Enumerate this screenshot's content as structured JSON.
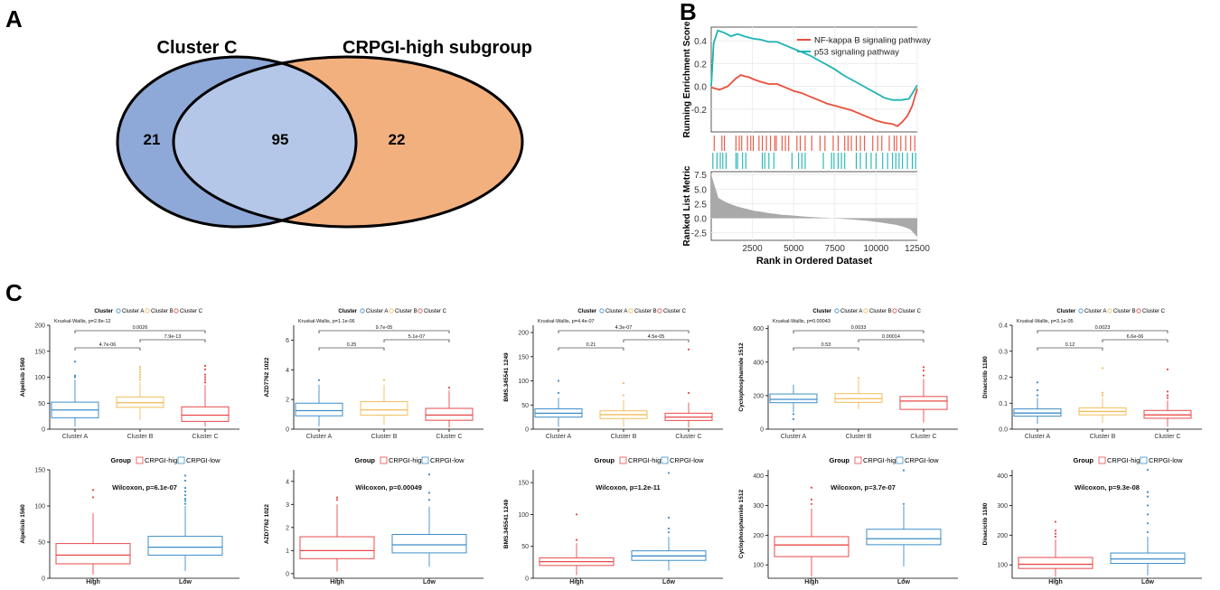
{
  "panels": {
    "A": "A",
    "B": "B",
    "C": "C"
  },
  "colors": {
    "clusterA": "#3d8ec9",
    "clusterB": "#f2bd5c",
    "clusterC": "#e84a4a",
    "high": "#e84a4a",
    "low": "#3d8ec9",
    "nfkb": "#e8503c",
    "p53": "#1fb3b3",
    "venn_left": "#8ea8d8",
    "venn_mid": "#b5c7e8",
    "venn_right": "#f3b07f"
  },
  "chart_data": [
    {
      "type": "venn",
      "id": "venn",
      "sets": [
        "Cluster C",
        "CRPGI-high subgroup"
      ],
      "values": {
        "left_only": 21,
        "intersection": 95,
        "right_only": 22
      }
    },
    {
      "type": "line",
      "id": "gsea",
      "ylabel": "Running Enrichment Score",
      "xlabel": "Rank in Ordered Dataset",
      "ylabel2": "Ranked List Metric",
      "ylim": [
        -0.4,
        0.52
      ],
      "yticks": [
        "0.4",
        "0.2",
        "0.0",
        "-0.2"
      ],
      "ytick_values": [
        0.4,
        0.2,
        0.0,
        -0.2
      ],
      "xlim": [
        0,
        12500
      ],
      "xticks": [
        "2500",
        "5000",
        "7500",
        "10000",
        "12500"
      ],
      "xtick_values": [
        2500,
        5000,
        7500,
        10000,
        12500
      ],
      "metric_ylim": [
        -3.8,
        8
      ],
      "metric_yticks": [
        "7.5",
        "5.0",
        "2.5",
        "0.0",
        "-2.5"
      ],
      "metric_ytick_values": [
        7.5,
        5.0,
        2.5,
        0.0,
        -2.5
      ],
      "series": [
        {
          "name": "NF-kappa B signaling pathway",
          "x": [
            0,
            500,
            1000,
            1500,
            1800,
            2000,
            2300,
            2600,
            3000,
            3500,
            4000,
            4500,
            5000,
            5500,
            6000,
            6500,
            7000,
            7500,
            8000,
            8500,
            9000,
            9500,
            10000,
            10500,
            11000,
            11300,
            11600,
            11900,
            12200,
            12500
          ],
          "y": [
            -0.01,
            -0.03,
            0.0,
            0.07,
            0.1,
            0.09,
            0.08,
            0.06,
            0.04,
            0.02,
            0.02,
            -0.01,
            -0.04,
            -0.06,
            -0.09,
            -0.12,
            -0.15,
            -0.17,
            -0.19,
            -0.21,
            -0.24,
            -0.27,
            -0.3,
            -0.32,
            -0.33,
            -0.35,
            -0.31,
            -0.26,
            -0.17,
            -0.02
          ]
        },
        {
          "name": "p53 signaling pathway",
          "x": [
            0,
            150,
            400,
            800,
            1200,
            1600,
            2000,
            2500,
            3000,
            3500,
            4000,
            4500,
            5000,
            5500,
            6000,
            6500,
            7000,
            7500,
            8000,
            8500,
            9000,
            9500,
            10000,
            10500,
            11000,
            11500,
            12000,
            12500
          ],
          "y": [
            0.0,
            0.38,
            0.49,
            0.47,
            0.44,
            0.46,
            0.44,
            0.42,
            0.41,
            0.39,
            0.39,
            0.36,
            0.33,
            0.3,
            0.27,
            0.23,
            0.19,
            0.15,
            0.1,
            0.06,
            0.02,
            -0.02,
            -0.06,
            -0.1,
            -0.12,
            -0.12,
            -0.11,
            0.01
          ]
        }
      ],
      "hits_nfkb": [
        180,
        650,
        800,
        1500,
        1700,
        1850,
        2200,
        2400,
        2550,
        2900,
        3100,
        3350,
        3600,
        3850,
        3950,
        4300,
        4500,
        4700,
        5200,
        5400,
        5700,
        6100,
        6600,
        6900,
        7400,
        7700,
        8100,
        8300,
        8500,
        8800,
        9050,
        9300,
        9800,
        10100,
        10350,
        10800,
        11100,
        11250,
        11500,
        11800,
        12100,
        12350
      ],
      "hits_p53": [
        100,
        350,
        550,
        700,
        900,
        1500,
        1600,
        1900,
        2100,
        3100,
        3250,
        3500,
        3800,
        4900,
        5300,
        5500,
        5700,
        6800,
        7300,
        7450,
        7700,
        7900,
        8100,
        8800,
        9050,
        9400,
        9700,
        10000,
        10400,
        10700,
        11000,
        11200,
        11400,
        11600,
        11900,
        12200,
        12400
      ],
      "metric": [
        7.5,
        3.5,
        2.8,
        2.3,
        1.9,
        1.6,
        1.3,
        1.1,
        0.9,
        0.75,
        0.6,
        0.5,
        0.4,
        0.3,
        0.22,
        0.15,
        0.08,
        0.0,
        -0.08,
        -0.15,
        -0.25,
        -0.35,
        -0.45,
        -0.6,
        -0.75,
        -0.95,
        -1.15,
        -1.45,
        -1.9,
        -3.2
      ]
    }
  ],
  "boxplots": [
    {
      "drug": "Alpelisib 1560",
      "top": {
        "legend_title": "Cluster",
        "legend_items": [
          "Cluster A",
          "Cluster B",
          "Cluster C"
        ],
        "test": "Kruskal-Wallis, p=2.8e-12",
        "ylim": [
          0,
          200
        ],
        "yticks": [
          "200",
          "150",
          "100",
          "50",
          "0"
        ],
        "ytick_values": [
          200,
          150,
          100,
          50,
          0
        ],
        "groups": [
          {
            "name": "Cluster A",
            "min": 5,
            "q1": 22,
            "median": 37,
            "q3": 52,
            "max": 95,
            "outliers": [
              100,
              103,
              130
            ]
          },
          {
            "name": "Cluster B",
            "min": 18,
            "q1": 42,
            "median": 51,
            "q3": 62,
            "max": 90,
            "outliers": [
              95,
              100,
              105,
              110,
              115,
              120
            ]
          },
          {
            "name": "Cluster C",
            "min": 5,
            "q1": 15,
            "median": 27,
            "q3": 43,
            "max": 85,
            "outliers": [
              90,
              95,
              100,
              105,
              115,
              122
            ]
          }
        ],
        "brackets": [
          {
            "from": 0,
            "to": 1,
            "label": "4.7e-06",
            "level": 0
          },
          {
            "from": 1,
            "to": 2,
            "label": "7.9e-13",
            "level": 1
          },
          {
            "from": 0,
            "to": 2,
            "label": "0.0026",
            "level": 2
          }
        ]
      },
      "bottom": {
        "legend_title": "Group",
        "legend_items": [
          "CRPGI-high",
          "CRPGI-low"
        ],
        "test": "Wilcoxon, p=6.1e-07",
        "ylim": [
          0,
          150
        ],
        "yticks": [
          "150",
          "100",
          "50",
          "0"
        ],
        "ytick_values": [
          150,
          100,
          50,
          0
        ],
        "groups": [
          {
            "name": "High",
            "min": 5,
            "q1": 20,
            "median": 32,
            "q3": 48,
            "max": 90,
            "outliers": [
              112,
              122
            ]
          },
          {
            "name": "Low",
            "min": 10,
            "q1": 32,
            "median": 43,
            "q3": 58,
            "max": 100,
            "outliers": [
              103,
              107,
              110,
              115,
              120,
              125,
              135,
              142
            ]
          }
        ]
      }
    },
    {
      "drug": "AZD7762 1022",
      "top": {
        "legend_title": "Cluster",
        "legend_items": [
          "Cluster A",
          "Cluster B",
          "Cluster C"
        ],
        "test": "Kruskal-Wallis, p=1.1e-06",
        "ylim": [
          0,
          7
        ],
        "yticks": [
          "6",
          "4",
          "2",
          "0"
        ],
        "ytick_values": [
          6,
          4,
          2,
          0
        ],
        "groups": [
          {
            "name": "Cluster A",
            "min": 0.2,
            "q1": 0.9,
            "median": 1.25,
            "q3": 1.75,
            "max": 3.0,
            "outliers": [
              3.3
            ]
          },
          {
            "name": "Cluster B",
            "min": 0.3,
            "q1": 0.95,
            "median": 1.3,
            "q3": 1.85,
            "max": 3.0,
            "outliers": [
              3.3
            ]
          },
          {
            "name": "Cluster C",
            "min": 0.1,
            "q1": 0.6,
            "median": 0.95,
            "q3": 1.4,
            "max": 2.6,
            "outliers": [
              2.8
            ]
          }
        ],
        "brackets": [
          {
            "from": 0,
            "to": 1,
            "label": "0.25",
            "level": 0
          },
          {
            "from": 1,
            "to": 2,
            "label": "5.1e-07",
            "level": 1
          },
          {
            "from": 0,
            "to": 2,
            "label": "9.7e-05",
            "level": 2
          }
        ]
      },
      "bottom": {
        "legend_title": "Group",
        "legend_items": [
          "CRPGI-high",
          "CRPGI-low"
        ],
        "test": "Wilcoxon, p=0.00049",
        "ylim": [
          -0.2,
          4.5
        ],
        "yticks": [
          "4",
          "3",
          "2",
          "1",
          "0"
        ],
        "ytick_values": [
          4,
          3,
          2,
          1,
          0
        ],
        "groups": [
          {
            "name": "High",
            "min": 0.1,
            "q1": 0.65,
            "median": 1.0,
            "q3": 1.6,
            "max": 3.0,
            "outliers": [
              3.2,
              3.3
            ]
          },
          {
            "name": "Low",
            "min": 0.3,
            "q1": 0.9,
            "median": 1.25,
            "q3": 1.7,
            "max": 2.9,
            "outliers": [
              3.2,
              3.5,
              4.3
            ]
          }
        ]
      }
    },
    {
      "drug": "BMS.345541 1249",
      "top": {
        "legend_title": "Cluster",
        "legend_items": [
          "Cluster A",
          "Cluster B",
          "Cluster C"
        ],
        "test": "Kruskal-Wallis, p=4.4e-07",
        "ylim": [
          0,
          215
        ],
        "yticks": [
          "200",
          "150",
          "100",
          "50",
          "0"
        ],
        "ytick_values": [
          200,
          150,
          100,
          50,
          0
        ],
        "groups": [
          {
            "name": "Cluster A",
            "min": 5,
            "q1": 25,
            "median": 33,
            "q3": 42,
            "max": 65,
            "outliers": [
              75,
              100
            ]
          },
          {
            "name": "Cluster B",
            "min": 5,
            "q1": 22,
            "median": 30,
            "q3": 38,
            "max": 60,
            "outliers": [
              70,
              95
            ]
          },
          {
            "name": "Cluster C",
            "min": 3,
            "q1": 18,
            "median": 25,
            "q3": 33,
            "max": 55,
            "outliers": [
              75,
              165
            ]
          }
        ],
        "brackets": [
          {
            "from": 0,
            "to": 1,
            "label": "0.21",
            "level": 0
          },
          {
            "from": 1,
            "to": 2,
            "label": "4.5e-05",
            "level": 1
          },
          {
            "from": 0,
            "to": 2,
            "label": "4.3e-07",
            "level": 2
          }
        ]
      },
      "bottom": {
        "legend_title": "Group",
        "legend_items": [
          "CRPGI-high",
          "CRPGI-low"
        ],
        "test": "Wilcoxon, p=1.2e-11",
        "ylim": [
          0,
          170
        ],
        "yticks": [
          "150",
          "100",
          "50",
          "0"
        ],
        "ytick_values": [
          150,
          100,
          50,
          0
        ],
        "groups": [
          {
            "name": "High",
            "min": 5,
            "q1": 20,
            "median": 26,
            "q3": 32,
            "max": 55,
            "outliers": [
              60,
              100
            ]
          },
          {
            "name": "Low",
            "min": 12,
            "q1": 28,
            "median": 35,
            "q3": 43,
            "max": 65,
            "outliers": [
              72,
              78,
              95,
              165
            ]
          }
        ]
      }
    },
    {
      "drug": "Cyclophosphamide 1512",
      "top": {
        "legend_title": "Cluster",
        "legend_items": [
          "Cluster A",
          "Cluster B",
          "Cluster C"
        ],
        "test": "Kruskal-Wallis, p=0.00043",
        "ylim": [
          0,
          620
        ],
        "yticks": [
          "600",
          "400",
          "200",
          "0"
        ],
        "ytick_values": [
          600,
          400,
          200,
          0
        ],
        "groups": [
          {
            "name": "Cluster A",
            "min": 100,
            "q1": 158,
            "median": 178,
            "q3": 210,
            "max": 265,
            "outliers": [
              60,
              90
            ]
          },
          {
            "name": "Cluster B",
            "min": 120,
            "q1": 160,
            "median": 182,
            "q3": 212,
            "max": 295,
            "outliers": [
              305
            ]
          },
          {
            "name": "Cluster C",
            "min": 40,
            "q1": 118,
            "median": 168,
            "q3": 195,
            "max": 300,
            "outliers": [
              320,
              350,
              370
            ]
          }
        ],
        "brackets": [
          {
            "from": 0,
            "to": 1,
            "label": "0.53",
            "level": 0
          },
          {
            "from": 1,
            "to": 2,
            "label": "0.00014",
            "level": 1
          },
          {
            "from": 0,
            "to": 2,
            "label": "0.0033",
            "level": 2
          }
        ]
      },
      "bottom": {
        "legend_title": "Group",
        "legend_items": [
          "CRPGI-high",
          "CRPGI-low"
        ],
        "test": "Wilcoxon, p=3.7e-07",
        "ylim": [
          55,
          420
        ],
        "yticks": [
          "400",
          "300",
          "200",
          "100"
        ],
        "ytick_values": [
          400,
          300,
          200,
          100
        ],
        "groups": [
          {
            "name": "High",
            "min": 60,
            "q1": 128,
            "median": 167,
            "q3": 195,
            "max": 290,
            "outliers": [
              305,
              320,
              360
            ]
          },
          {
            "name": "Low",
            "min": 95,
            "q1": 168,
            "median": 188,
            "q3": 220,
            "max": 300,
            "outliers": [
              305,
              418
            ]
          }
        ]
      }
    },
    {
      "drug": "Dinaciclib 1180",
      "top": {
        "legend_title": "Cluster",
        "legend_items": [
          "Cluster A",
          "Cluster B",
          "Cluster C"
        ],
        "test": "Kruskal-Wallis, p=3.1e-05",
        "ylim": [
          0,
          0.4
        ],
        "yticks": [
          "0.4",
          "0.3",
          "0.2",
          "0.1",
          "0.0"
        ],
        "ytick_values": [
          0.4,
          0.3,
          0.2,
          0.1,
          0.0
        ],
        "groups": [
          {
            "name": "Cluster A",
            "min": 0.02,
            "q1": 0.05,
            "median": 0.062,
            "q3": 0.078,
            "max": 0.12,
            "outliers": [
              0.13,
              0.15,
              0.18
            ]
          },
          {
            "name": "Cluster B",
            "min": 0.025,
            "q1": 0.055,
            "median": 0.068,
            "q3": 0.082,
            "max": 0.12,
            "outliers": [
              0.13,
              0.14,
              0.235
            ]
          },
          {
            "name": "Cluster C",
            "min": 0.01,
            "q1": 0.042,
            "median": 0.055,
            "q3": 0.072,
            "max": 0.11,
            "outliers": [
              0.12,
              0.13,
              0.145,
              0.23
            ]
          }
        ],
        "brackets": [
          {
            "from": 0,
            "to": 1,
            "label": "0.12",
            "level": 0
          },
          {
            "from": 1,
            "to": 2,
            "label": "6.6e-06",
            "level": 1
          },
          {
            "from": 0,
            "to": 2,
            "label": "0.0023",
            "level": 2
          }
        ]
      },
      "bottom": {
        "legend_title": "Group",
        "legend_items": [
          "CRPGI-high",
          "CRPGI-low"
        ],
        "test": "Wilcoxon, p=9.3e-08",
        "ylim": [
          55,
          420
        ],
        "yticks": [
          "400",
          "300",
          "200",
          "100"
        ],
        "ytick_values": [
          400,
          300,
          200,
          100
        ],
        "groups": [
          {
            "name": "High",
            "min": 60,
            "q1": 88,
            "median": 102,
            "q3": 125,
            "max": 185,
            "outliers": [
              195,
              205,
              215,
              245
            ]
          },
          {
            "name": "Low",
            "min": 65,
            "q1": 105,
            "median": 120,
            "q3": 140,
            "max": 195,
            "outliers": [
              210,
              240,
              270,
              300,
              330,
              345,
              420
            ]
          }
        ]
      }
    }
  ]
}
